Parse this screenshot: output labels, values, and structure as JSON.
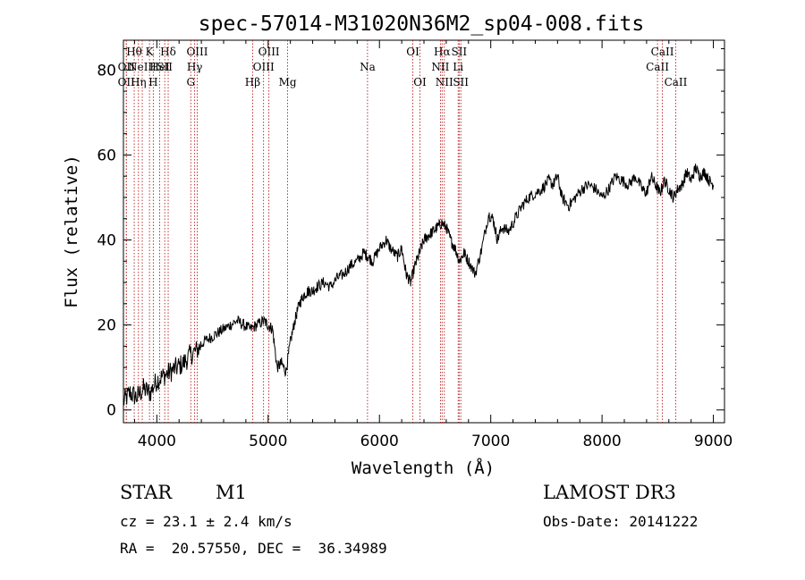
{
  "chart_data": {
    "type": "line",
    "title": "spec-57014-M31020N36M2_sp04-008.fits",
    "xlabel": "Wavelength (Å)",
    "ylabel": "Flux (relative)",
    "xlim": [
      3700,
      9100
    ],
    "ylim": [
      -3,
      87
    ],
    "xticks": [
      4000,
      5000,
      6000,
      7000,
      8000,
      9000
    ],
    "xtick_labels": [
      "4000",
      "5000",
      "6000",
      "7000",
      "8000",
      "9000"
    ],
    "yticks": [
      0,
      20,
      40,
      60,
      80
    ],
    "ytick_labels": [
      "0",
      "20",
      "40",
      "60",
      "80"
    ],
    "grid": false,
    "series": [
      {
        "name": "spectrum",
        "x": [
          3700,
          3760,
          3820,
          3880,
          3940,
          4000,
          4060,
          4120,
          4180,
          4240,
          4300,
          4360,
          4420,
          4480,
          4540,
          4600,
          4660,
          4720,
          4780,
          4840,
          4900,
          4960,
          5000,
          5040,
          5080,
          5120,
          5160,
          5200,
          5240,
          5280,
          5320,
          5360,
          5400,
          5440,
          5500,
          5560,
          5620,
          5680,
          5740,
          5800,
          5860,
          5900,
          5940,
          6000,
          6060,
          6100,
          6160,
          6200,
          6240,
          6280,
          6320,
          6360,
          6400,
          6440,
          6480,
          6520,
          6560,
          6600,
          6640,
          6680,
          6720,
          6760,
          6800,
          6860,
          6920,
          6980,
          7020,
          7060,
          7100,
          7160,
          7220,
          7280,
          7340,
          7400,
          7460,
          7520,
          7560,
          7600,
          7640,
          7700,
          7760,
          7820,
          7880,
          7940,
          8000,
          8060,
          8120,
          8180,
          8240,
          8300,
          8360,
          8400,
          8440,
          8480,
          8520,
          8560,
          8600,
          8640,
          8680,
          8720,
          8760,
          8800,
          8840,
          8880,
          8920,
          8960,
          9000
        ],
        "y": [
          2,
          4,
          3,
          5,
          4,
          7,
          8,
          9,
          10,
          11,
          13,
          14,
          16,
          17,
          18,
          19,
          20,
          21,
          20,
          19,
          20,
          21,
          20,
          19,
          10,
          11,
          9,
          16,
          21,
          25,
          27,
          28,
          28,
          29,
          30,
          29,
          31,
          32,
          34,
          35,
          37,
          36,
          35,
          38,
          40,
          38,
          36,
          38,
          32,
          30,
          34,
          37,
          40,
          41,
          42,
          43,
          44,
          43,
          40,
          38,
          35,
          37,
          35,
          32,
          38,
          46,
          45,
          40,
          43,
          42,
          45,
          48,
          50,
          51,
          52,
          54,
          53,
          55,
          50,
          48,
          50,
          52,
          53,
          52,
          50,
          52,
          55,
          54,
          53,
          55,
          52,
          51,
          55,
          53,
          51,
          54,
          52,
          50,
          52,
          53,
          56,
          54,
          57,
          55,
          56,
          54,
          53
        ]
      }
    ],
    "line_labels": [
      {
        "wavelength": 3797,
        "label": "Hθ",
        "row": 1
      },
      {
        "wavelength": 3726,
        "label": "OII",
        "row": 2
      },
      {
        "wavelength": 3869,
        "label": "NeIII",
        "row": 2
      },
      {
        "wavelength": 3726,
        "label": "OII",
        "row": 3
      },
      {
        "wavelength": 3835,
        "label": "Hη",
        "row": 3
      },
      {
        "wavelength": 3934,
        "label": "K",
        "row": 1
      },
      {
        "wavelength": 3968,
        "label": "H",
        "row": 3
      },
      {
        "wavelength": 4026,
        "label": "HeI",
        "row": 2
      },
      {
        "wavelength": 4071,
        "label": "SII",
        "row": 2
      },
      {
        "wavelength": 4102,
        "label": "Hδ",
        "row": 1
      },
      {
        "wavelength": 4363,
        "label": "OIII",
        "row": 1
      },
      {
        "wavelength": 4340,
        "label": "Hγ",
        "row": 2
      },
      {
        "wavelength": 4305,
        "label": "G",
        "row": 3
      },
      {
        "wavelength": 4861,
        "label": "Hβ",
        "row": 3
      },
      {
        "wavelength": 4959,
        "label": "OIII",
        "row": 2
      },
      {
        "wavelength": 5007,
        "label": "OIII",
        "row": 1
      },
      {
        "wavelength": 5175,
        "label": "Mg",
        "row": 3
      },
      {
        "wavelength": 5893,
        "label": "Na",
        "row": 2
      },
      {
        "wavelength": 6300,
        "label": "OI",
        "row": 1
      },
      {
        "wavelength": 6364,
        "label": "OI",
        "row": 3
      },
      {
        "wavelength": 6548,
        "label": "NII",
        "row": 2
      },
      {
        "wavelength": 6563,
        "label": "Hα",
        "row": 1
      },
      {
        "wavelength": 6583,
        "label": "NII",
        "row": 3
      },
      {
        "wavelength": 6707,
        "label": "Li",
        "row": 2
      },
      {
        "wavelength": 6716,
        "label": "SII",
        "row": 1
      },
      {
        "wavelength": 6731,
        "label": "SII",
        "row": 3
      },
      {
        "wavelength": 8498,
        "label": "CaII",
        "row": 2
      },
      {
        "wavelength": 8542,
        "label": "CaII",
        "row": 1
      },
      {
        "wavelength": 8662,
        "label": "CaII",
        "row": 3
      }
    ]
  },
  "info": {
    "object_class": "STAR",
    "subclass": "M1",
    "survey": "LAMOST DR3",
    "redshift": "cz = 23.1 ± 2.4 km/s",
    "obs_date": "Obs-Date: 20141222",
    "coords": "RA =  20.57550, DEC =  36.34989"
  }
}
